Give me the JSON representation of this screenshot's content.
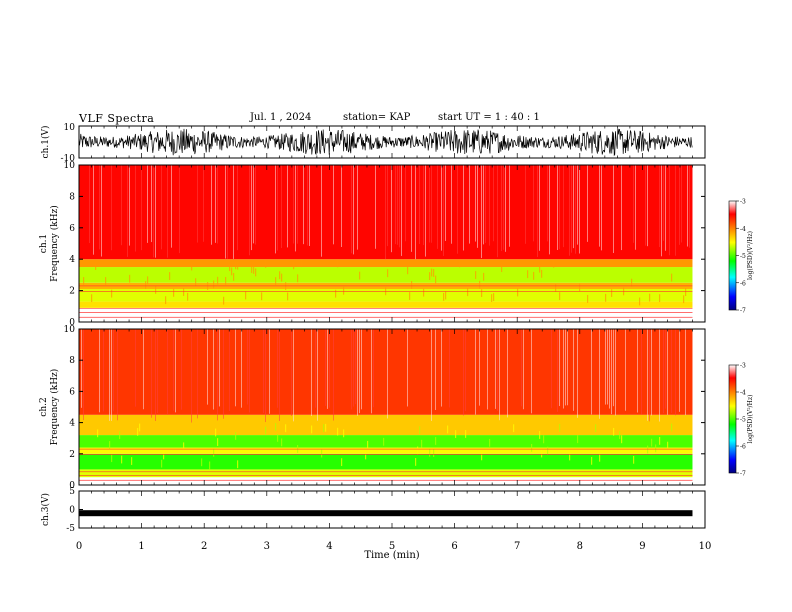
{
  "header": {
    "title": "VLF Spectra",
    "date": "Jul. 1 , 2024",
    "station": "station= KAP",
    "start": "start UT = 1 : 40 : 1"
  },
  "colors": {
    "background": "#ffffff",
    "trace": "#000000",
    "colormap": [
      "#00007f",
      "#0000ff",
      "#00ffff",
      "#00ff00",
      "#ffff00",
      "#ff8000",
      "#ff0000",
      "#ffffff"
    ]
  },
  "chart_data": [
    {
      "id": "ch1-voltage",
      "type": "line",
      "ylabel": "ch.1(V)",
      "ylim": [
        -10,
        10
      ],
      "yticks": [
        "10",
        "-10"
      ],
      "note_visible": "dense noise trace spanning roughly -8 to 8 V"
    },
    {
      "id": "ch1-spectrogram",
      "type": "heatmap",
      "ylabel": "ch.1 Frequency (kHz)",
      "ylim": [
        0,
        10
      ],
      "yticks": [
        "0",
        "2",
        "4",
        "6",
        "8",
        "10"
      ],
      "colorbar": {
        "label": "log(PSD)(V²/Hz)",
        "range": [
          -7,
          -3
        ],
        "ticks": [
          "-3",
          "-4",
          "-5",
          "-6",
          "-7"
        ]
      },
      "bands_khz": [
        {
          "from": 0.9,
          "to": 1.3,
          "level": -4.4
        },
        {
          "from": 1.3,
          "to": 2.1,
          "level": -4.6
        },
        {
          "from": 2.1,
          "to": 2.5,
          "level": -4.2
        },
        {
          "from": 2.5,
          "to": 3.5,
          "level": -4.7
        },
        {
          "from": 3.5,
          "to": 4.0,
          "level": -4.1
        },
        {
          "from": 4.0,
          "to": 10.0,
          "level": -3.5
        }
      ]
    },
    {
      "id": "ch2-spectrogram",
      "type": "heatmap",
      "ylabel": "ch.2 Frequency (kHz)",
      "ylim": [
        0,
        10
      ],
      "yticks": [
        "0",
        "2",
        "4",
        "6",
        "8",
        "10"
      ],
      "colorbar": {
        "label": "log(PSD)(V²/Hz)",
        "range": [
          -7,
          -3
        ],
        "ticks": [
          "-3",
          "-4",
          "-5",
          "-6",
          "-7"
        ]
      },
      "bands_khz": [
        {
          "from": 0.5,
          "to": 1.0,
          "level": -4.6
        },
        {
          "from": 1.0,
          "to": 2.0,
          "level": -5.1
        },
        {
          "from": 2.0,
          "to": 2.4,
          "level": -4.5
        },
        {
          "from": 2.4,
          "to": 3.2,
          "level": -5.0
        },
        {
          "from": 3.2,
          "to": 4.5,
          "level": -4.3
        },
        {
          "from": 4.5,
          "to": 10.0,
          "level": -3.7
        }
      ]
    },
    {
      "id": "ch3-voltage",
      "type": "line",
      "ylabel": "ch.3(V)",
      "ylim": [
        -5,
        5
      ],
      "yticks": [
        "5",
        "0",
        "-5"
      ],
      "level_v": -1.0
    },
    {
      "id": "time-axis",
      "type": "line",
      "xlabel": "Time (min)",
      "xlim": [
        0,
        10
      ],
      "xticks": [
        "0",
        "1",
        "2",
        "3",
        "4",
        "5",
        "6",
        "7",
        "8",
        "9",
        "10"
      ],
      "data_end_min": 9.8
    }
  ]
}
